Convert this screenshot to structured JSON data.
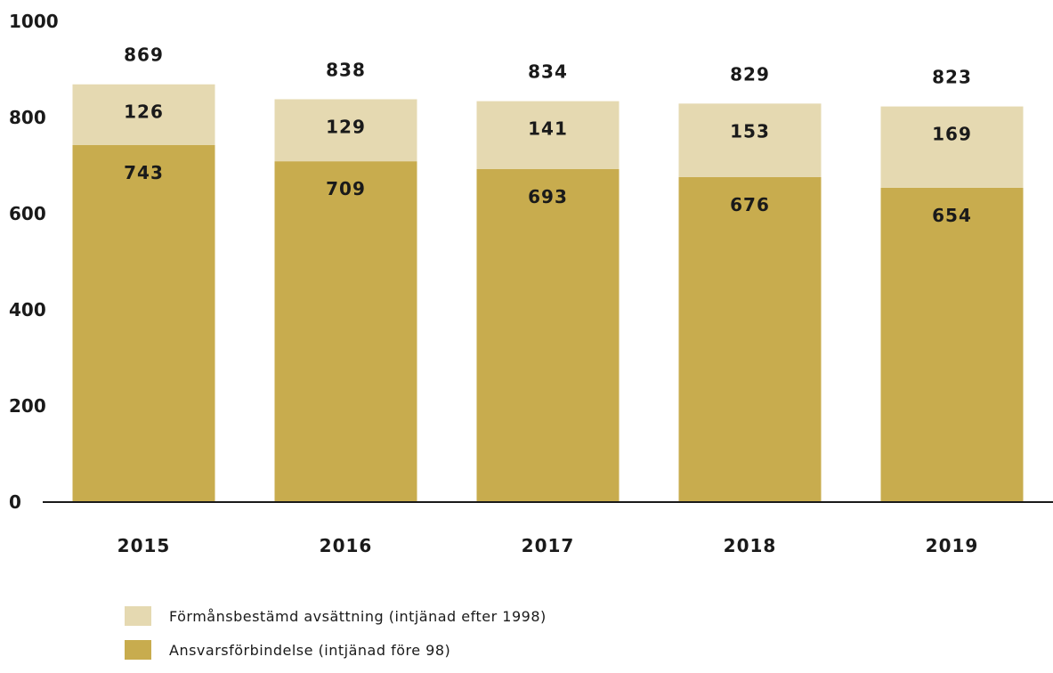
{
  "chart_data": {
    "type": "bar",
    "stacked": true,
    "categories": [
      "2015",
      "2016",
      "2017",
      "2018",
      "2019"
    ],
    "series": [
      {
        "name": "Ansvarsförbindelse (intjänad före 98)",
        "color": "#c8ac4e",
        "values": [
          743,
          709,
          693,
          676,
          654
        ]
      },
      {
        "name": "Förmånsbestämd avsättning (intjänad efter 1998)",
        "color": "#e5d9b1",
        "values": [
          126,
          129,
          141,
          153,
          169
        ]
      }
    ],
    "totals": [
      869,
      838,
      834,
      829,
      823
    ],
    "ylim": [
      0,
      1000
    ],
    "yticks": [
      "0",
      "200",
      "400",
      "600",
      "800",
      "1000"
    ],
    "grid": false,
    "legend_position": "bottom-left",
    "title": "",
    "xlabel": "",
    "ylabel": ""
  },
  "legend": {
    "items": [
      {
        "label": "Förmånsbestämd avsättning (intjänad efter 1998)",
        "color": "#e5d9b1"
      },
      {
        "label": "Ansvarsförbindelse (intjänad före 98)",
        "color": "#c8ac4e"
      }
    ]
  }
}
